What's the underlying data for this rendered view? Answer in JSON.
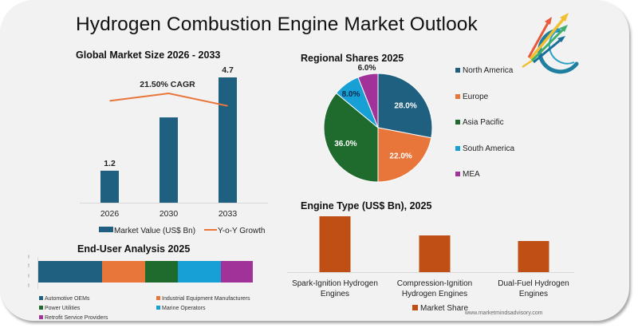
{
  "header": {
    "title": "Hydrogen Combustion Engine Market Outlook",
    "logo": "rising-arrows-logo-icon"
  },
  "watermark": "www.marketmindsadvisory.com",
  "colors": {
    "navy": "#1f5f80",
    "orange": "#e8753a",
    "green": "#1e6b2d",
    "sky": "#17a0d6",
    "purple": "#a0329a",
    "rust": "#c04f16",
    "growth_line": "#e8753a",
    "card": "#f2f2f2"
  },
  "chart_data": [
    {
      "id": "market-size",
      "type": "bar",
      "title": "Global Market Size 2026 - 2033",
      "categories": [
        "2026",
        "2030",
        "2033"
      ],
      "series": [
        {
          "name": "Market Value (US$ Bn)",
          "values": [
            1.2,
            3.2,
            4.7
          ],
          "labels": [
            "1.2",
            "",
            "4.7"
          ]
        },
        {
          "name": "Y-o-Y Growth",
          "type": "line",
          "values": [
            21.0,
            22.2,
            20.2
          ]
        }
      ],
      "annotation": "21.50% CAGR",
      "ylim": [
        0,
        5.0
      ],
      "legend": "bottom",
      "grid": false
    },
    {
      "id": "regional-shares",
      "type": "pie",
      "title": "Regional Shares 2025",
      "categories": [
        "North America",
        "Europe",
        "Asia Pacific",
        "South America",
        "MEA"
      ],
      "values": [
        28.0,
        22.0,
        36.0,
        8.0,
        6.0
      ],
      "labels": [
        "28.0%",
        "22.0%",
        "36.0%",
        "8.0%",
        "6.0%"
      ],
      "legend": "right"
    },
    {
      "id": "engine-type",
      "type": "bar",
      "title": "Engine Type (US$ Bn), 2025",
      "categories": [
        "Spark-Ignition Hydrogen Engines",
        "Compression-Ignition Hydrogen Engines",
        "Dual-Fuel Hydrogen Engines"
      ],
      "category_lines": [
        [
          "Spark-Ignition Hydrogen",
          "Engines"
        ],
        [
          "Compression-Ignition",
          "Hydrogen Engines"
        ],
        [
          "Dual-Fuel Hydrogen",
          "Engines"
        ]
      ],
      "series": [
        {
          "name": "Market Share",
          "values": [
            0.7,
            0.46,
            0.39
          ]
        }
      ],
      "ylim": [
        0,
        0.75
      ],
      "legend": "bottom",
      "grid": false
    },
    {
      "id": "end-user",
      "type": "bar",
      "orientation": "horizontal-stacked",
      "title": "End-User Analysis 2025",
      "categories": [
        "Automotive OEMs",
        "Industrial Equipment Manufacturers",
        "Power Utilities",
        "Marine Operators",
        "Retrofit Service Providers"
      ],
      "values": [
        30,
        20,
        15,
        20,
        15
      ],
      "legend": "bottom"
    }
  ]
}
